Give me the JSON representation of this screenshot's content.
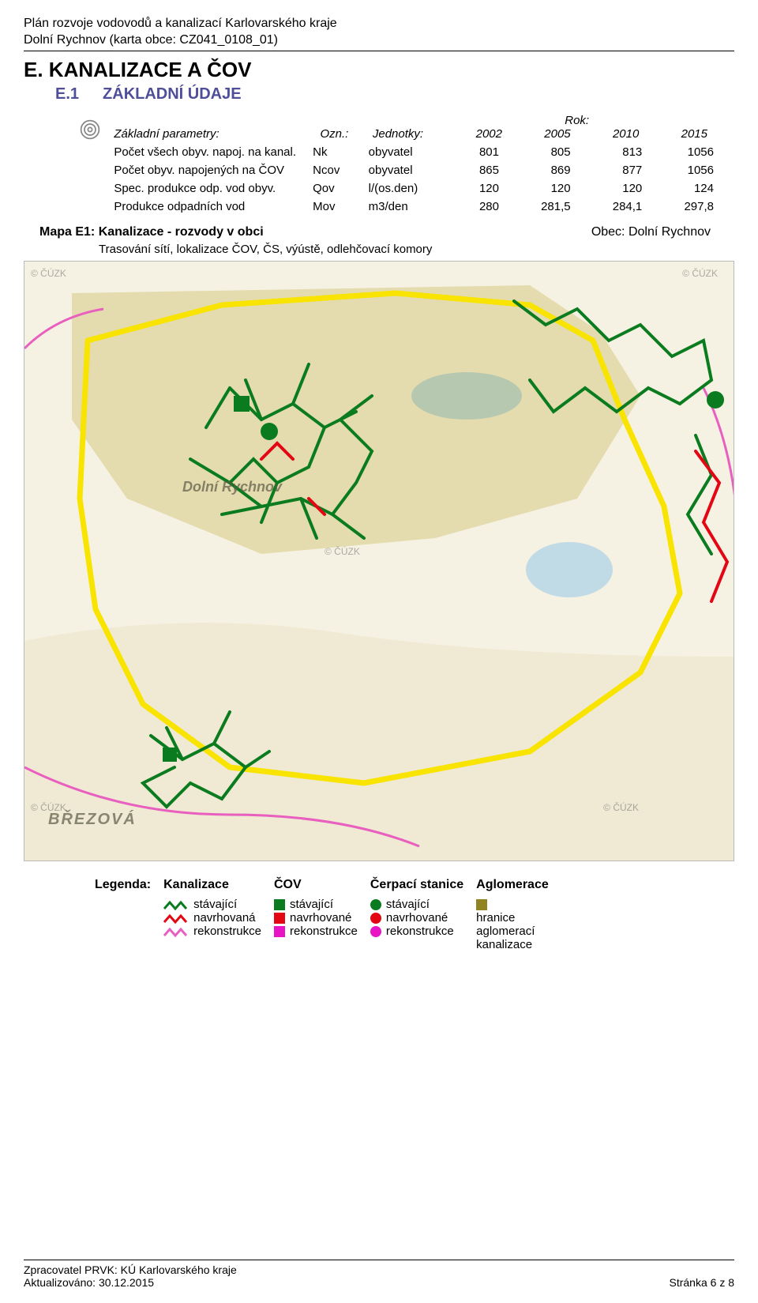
{
  "header": {
    "line1": "Plán rozvoje vodovodů a kanalizací Karlovarského kraje",
    "line2": "Dolní Rychnov (karta obce: CZ041_0108_01)"
  },
  "section": {
    "title": "E. KANALIZACE A ČOV",
    "sub_num": "E.1",
    "sub_title": "ZÁKLADNÍ ÚDAJE"
  },
  "params": {
    "heading_left": "Základní parametry:",
    "heading_ozn": "Ozn.:",
    "heading_unit": "Jednotky:",
    "heading_year": "Rok:",
    "years": [
      "2002",
      "2005",
      "2010",
      "2015"
    ],
    "rows": [
      {
        "label": "Počet všech obyv. napoj. na kanal.",
        "ozn": "Nk",
        "unit": "obyvatel",
        "vals": [
          "801",
          "805",
          "813",
          "1056"
        ]
      },
      {
        "label": "Počet obyv. napojených na ČOV",
        "ozn": "Ncov",
        "unit": "obyvatel",
        "vals": [
          "865",
          "869",
          "877",
          "1056"
        ]
      },
      {
        "label": "Spec. produkce odp. vod obyv.",
        "ozn": "Qov",
        "unit": "l/(os.den)",
        "vals": [
          "120",
          "120",
          "120",
          "124"
        ]
      },
      {
        "label": "Produkce odpadních vod",
        "ozn": "Mov",
        "unit": "m3/den",
        "vals": [
          "280",
          "281,5",
          "284,1",
          "297,8"
        ]
      }
    ]
  },
  "map_heading": {
    "lead": "Mapa E1:",
    "title": "Kanalizace - rozvody v obci",
    "obec": "Obec: Dolní Rychnov",
    "sub": "Trasování sítí, lokalizace ČOV, ČS, výústě, odlehčovací komory"
  },
  "map": {
    "bg_color": "#f6f2e3",
    "boundary_color": "#f8e400",
    "sewer_existing_color": "#0a7c1f",
    "sewer_proposed_color": "#e30613",
    "sewer_recon_color": "#e85fbf",
    "aglom_fill": "#c2b24a",
    "water_color": "#a9d2e6",
    "road_color": "#e8dcc2",
    "watermarks": [
      "© ČÚZK",
      "© ČÚZK",
      "© ČÚZK",
      "© ČÚZK",
      "© ČÚZK"
    ],
    "town_labels": [
      "Dolní Rychnov",
      "BŘEZOVÁ"
    ]
  },
  "legend": {
    "head": "Legenda:",
    "cols": {
      "kanal": {
        "title": "Kanalizace",
        "items": [
          "stávající",
          "navrhovaná",
          "rekonstrukce"
        ],
        "colors": [
          "#0a7c1f",
          "#e30613",
          "#e85fbf"
        ],
        "type": "zigzag"
      },
      "cov": {
        "title": "ČOV",
        "items": [
          "stávající",
          "navrhované",
          "rekonstrukce"
        ],
        "colors": [
          "#0a7c1f",
          "#e30613",
          "#e815c4"
        ],
        "type": "square"
      },
      "cerp": {
        "title": "Čerpací stanice",
        "items": [
          "stávající",
          "navrhované",
          "rekonstrukce"
        ],
        "colors": [
          "#0a7c1f",
          "#e30613",
          "#e815c4"
        ],
        "type": "dot"
      },
      "aglom": {
        "title": "Aglomerace",
        "text": "hranice aglomerací kanalizace",
        "color": "#8f8420"
      }
    }
  },
  "footer": {
    "left1": "Zpracovatel PRVK: KÚ Karlovarského kraje",
    "left2": "Aktualizováno: 30.12.2015",
    "right": "Stránka 6 z 8"
  }
}
